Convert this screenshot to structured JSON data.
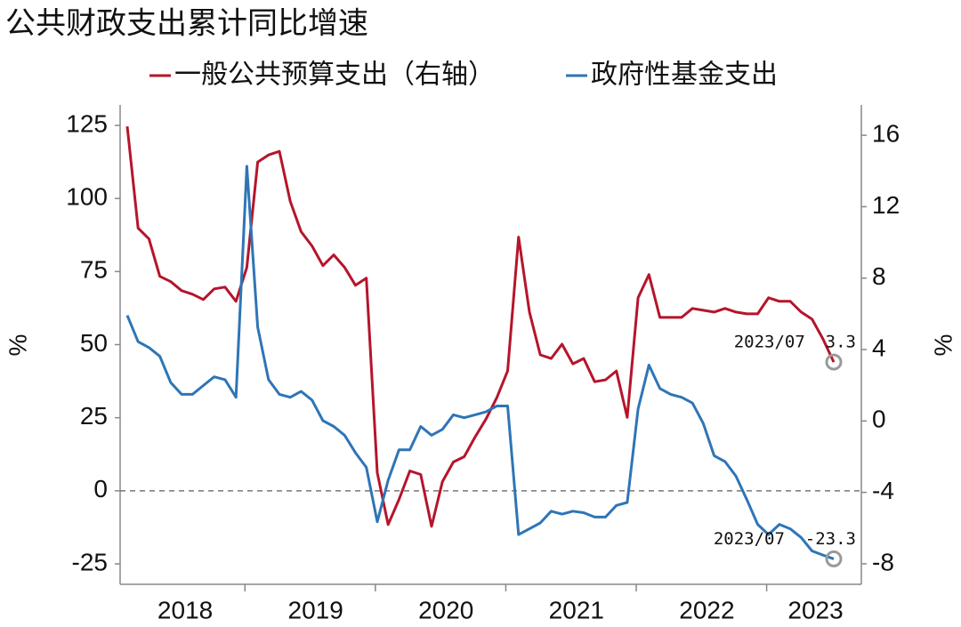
{
  "chart_data": {
    "type": "line",
    "title": "公共财政支出累计同比增速",
    "ylabel": "%",
    "y2label": "%",
    "categories": [
      null,
      null,
      null,
      null,
      null,
      "2018",
      null,
      null,
      null,
      null,
      null,
      null,
      null,
      null,
      null,
      null,
      null,
      "2019",
      null,
      null,
      null,
      null,
      null,
      null,
      null,
      null,
      null,
      null,
      null,
      "2020",
      null,
      null,
      null,
      null,
      null,
      null,
      null,
      null,
      null,
      null,
      null,
      "2021",
      null,
      null,
      null,
      null,
      null,
      null,
      null,
      null,
      null,
      null,
      null,
      "2022",
      null,
      null,
      null,
      null,
      null,
      null,
      null,
      null,
      null,
      "2023",
      null,
      null
    ],
    "series": [
      {
        "name": "一般公共预算支出（右轴）",
        "color": "#b5152b",
        "axis": "y2",
        "values": [
          16.5,
          10.8,
          10.2,
          8.1,
          7.8,
          7.3,
          7.1,
          6.8,
          7.4,
          7.5,
          6.7,
          8.6,
          14.5,
          14.9,
          15.1,
          12.3,
          10.6,
          9.8,
          8.7,
          9.3,
          8.6,
          7.6,
          8.0,
          -2.9,
          -5.8,
          -4.4,
          -2.8,
          -3.0,
          -5.9,
          -3.4,
          -2.3,
          -2.0,
          -0.9,
          0.1,
          1.3,
          2.8,
          10.3,
          6.1,
          3.7,
          3.5,
          4.3,
          3.2,
          3.5,
          2.2,
          2.3,
          2.8,
          0.2,
          6.9,
          8.2,
          5.8,
          5.8,
          5.8,
          6.3,
          6.2,
          6.1,
          6.3,
          6.1,
          6.0,
          6.0,
          6.9,
          6.7,
          6.7,
          6.1,
          5.7,
          4.6,
          3.3
        ]
      },
      {
        "name": "政府性基金支出",
        "color": "#2e75b6",
        "values": [
          60,
          51,
          49,
          46,
          37,
          33,
          33,
          36,
          39,
          38,
          32,
          111,
          56,
          38,
          33,
          32,
          34,
          31,
          24,
          22,
          19,
          13,
          8,
          -10.6,
          3.6,
          14,
          14,
          22,
          19,
          21,
          26,
          25,
          26,
          27,
          29,
          29,
          -15,
          -13,
          -11,
          -7,
          -8,
          -7,
          -7.5,
          -9,
          -9,
          -5,
          -4,
          28,
          43,
          35,
          33,
          32,
          30,
          23,
          12,
          10,
          5,
          -3,
          -11.5,
          -15,
          -11.5,
          -13,
          -16,
          -20.6,
          -22,
          -23.3
        ]
      }
    ],
    "annotations": [
      {
        "text": "2023/07  3.3",
        "series": 0
      },
      {
        "text": "2023/07  -23.3",
        "series": 1
      }
    ],
    "ylim": [
      -32,
      132
    ],
    "yticks": [
      -25,
      0,
      25,
      50,
      75,
      100,
      125
    ],
    "y2lim": [
      -9.15,
      17.7
    ],
    "y2ticks": [
      -8,
      -4,
      0,
      4,
      8,
      12,
      16
    ],
    "hline": 0,
    "legend": "top"
  }
}
